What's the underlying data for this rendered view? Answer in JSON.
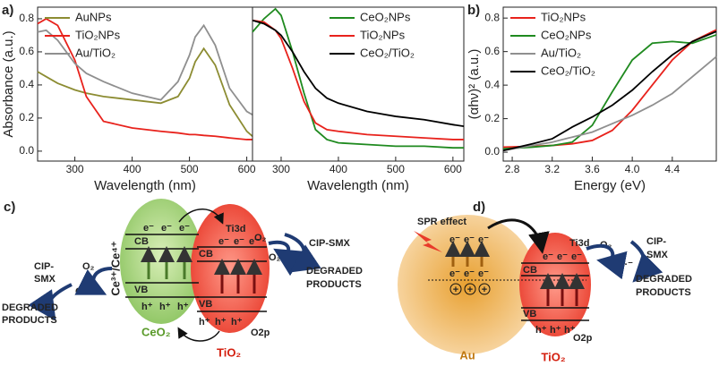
{
  "chart_data": [
    {
      "type": "line",
      "panel_label": "a)",
      "xlabel": "Wavelength (nm)",
      "ylabel": "Absorbance (a.u.)",
      "x": [
        235,
        250,
        270,
        300,
        320,
        350,
        400,
        450,
        480,
        500,
        510,
        525,
        545,
        570,
        600,
        610
      ],
      "series": [
        {
          "name": "AuNPs",
          "color": "#8c8c32",
          "values": [
            0.48,
            0.45,
            0.41,
            0.37,
            0.35,
            0.33,
            0.31,
            0.29,
            0.33,
            0.44,
            0.54,
            0.62,
            0.52,
            0.28,
            0.12,
            0.09
          ]
        },
        {
          "name": "TiO₂NPs",
          "color": "#e8221c",
          "values": [
            0.77,
            0.8,
            0.76,
            0.55,
            0.33,
            0.18,
            0.14,
            0.12,
            0.11,
            0.1,
            0.1,
            0.095,
            0.09,
            0.08,
            0.07,
            0.07
          ]
        },
        {
          "name": "Au/TiO₂",
          "color": "#8f8f8f",
          "values": [
            0.72,
            0.73,
            0.67,
            0.53,
            0.47,
            0.42,
            0.35,
            0.31,
            0.42,
            0.58,
            0.69,
            0.76,
            0.64,
            0.38,
            0.24,
            0.22
          ]
        }
      ],
      "xlim": [
        235,
        610
      ],
      "xticks": [
        300,
        400,
        500,
        600
      ],
      "ylim": [
        -0.06,
        0.87
      ],
      "yticks": [
        {
          "value": 0,
          "label": "0.0"
        },
        0.2,
        0.4,
        0.6,
        0.8
      ],
      "legend_position": "upper left"
    },
    {
      "type": "line",
      "xlabel": "Wavelength (nm)",
      "x": [
        250,
        270,
        290,
        300,
        320,
        340,
        360,
        380,
        400,
        450,
        500,
        550,
        600,
        619
      ],
      "series": [
        {
          "name": "CeO₂NPs",
          "color": "#1f8a1f",
          "values": [
            0.72,
            0.8,
            0.86,
            0.82,
            0.6,
            0.35,
            0.13,
            0.07,
            0.05,
            0.04,
            0.03,
            0.03,
            0.02,
            0.02
          ]
        },
        {
          "name": "TiO₂NPs",
          "color": "#e8221c",
          "values": [
            0.79,
            0.78,
            0.73,
            0.68,
            0.5,
            0.3,
            0.17,
            0.13,
            0.12,
            0.1,
            0.09,
            0.08,
            0.07,
            0.07
          ]
        },
        {
          "name": "CeO₂/TiO₂",
          "color": "#000000",
          "values": [
            0.79,
            0.77,
            0.73,
            0.7,
            0.6,
            0.48,
            0.38,
            0.32,
            0.29,
            0.24,
            0.21,
            0.19,
            0.16,
            0.15
          ]
        }
      ],
      "xlim": [
        250,
        619
      ],
      "xticks": [
        300,
        400,
        500,
        600
      ],
      "ylim": [
        -0.06,
        0.87
      ],
      "legend_position": "upper right"
    },
    {
      "type": "line",
      "panel_label": "b)",
      "xlabel": "Energy (eV)",
      "ylabel": "(αhν)² (a.u.)",
      "x": [
        2.71,
        3.0,
        3.2,
        3.4,
        3.6,
        3.8,
        4.0,
        4.2,
        4.4,
        4.6,
        4.84
      ],
      "series": [
        {
          "name": "TiO₂NPs",
          "color": "#e8221c",
          "values": [
            0.03,
            0.035,
            0.04,
            0.05,
            0.07,
            0.13,
            0.25,
            0.4,
            0.55,
            0.66,
            0.73
          ]
        },
        {
          "name": "CeO₂NPs",
          "color": "#1f8a1f",
          "values": [
            0.02,
            0.03,
            0.04,
            0.06,
            0.16,
            0.36,
            0.55,
            0.65,
            0.66,
            0.65,
            0.7
          ]
        },
        {
          "name": "Au/TiO₂",
          "color": "#8f8f8f",
          "values": [
            0.01,
            0.04,
            0.06,
            0.09,
            0.12,
            0.17,
            0.22,
            0.28,
            0.35,
            0.45,
            0.57
          ]
        },
        {
          "name": "CeO₂/TiO₂",
          "color": "#000000",
          "values": [
            0.01,
            0.05,
            0.08,
            0.15,
            0.21,
            0.28,
            0.37,
            0.48,
            0.58,
            0.66,
            0.72
          ]
        }
      ],
      "xlim": [
        2.71,
        4.84
      ],
      "xticks": [
        2.8,
        3.2,
        3.6,
        {
          "value": 4,
          "label": "4.0"
        },
        4.4
      ],
      "ylim": [
        -0.053,
        0.865
      ],
      "yticks": [
        {
          "value": 0,
          "label": "0.0"
        },
        0.2,
        0.4,
        0.6,
        0.8
      ],
      "legend_position": "upper left"
    }
  ],
  "diagram_c": {
    "label": "c)",
    "left_pollutant": [
      "CIP-",
      "SMX"
    ],
    "left_o2": "O₂",
    "left_radical": "O₂·⁻",
    "left_products": [
      "DEGRADED",
      "PRODUCTS"
    ],
    "couple": "Ce³⁺/Ce⁴⁺",
    "ceo2_cb": "CB",
    "ceo2_vb": "VB",
    "ceo2_electrons": [
      "e⁻",
      "e⁻",
      "e⁻"
    ],
    "ceo2_holes": [
      "h⁺",
      "h⁺",
      "h⁺"
    ],
    "ceo2_name": "CeO₂",
    "tio2_level_top": "Ti3d",
    "tio2_cb": "CB",
    "tio2_vb": "VB",
    "tio2_electrons": [
      "e⁻",
      "e⁻",
      "e⁻"
    ],
    "tio2_holes": [
      "h⁺",
      "h⁺",
      "h⁺"
    ],
    "tio2_level_bottom": "O2p",
    "tio2_name": "TiO₂",
    "right_o2": "O₂",
    "right_radical": "O₂·⁻",
    "right_pollutant": "CIP-SMX",
    "right_products": [
      "DEGRADED",
      "PRODUCTS"
    ]
  },
  "diagram_d": {
    "label": "d)",
    "spr": "SPR effect",
    "au_electrons_top": [
      "e⁻",
      "e⁻",
      "e⁻"
    ],
    "au_electrons": [
      "e⁻",
      "e⁻",
      "e⁻"
    ],
    "au_charges": [
      "+",
      "+",
      "+"
    ],
    "au_name": "Au",
    "tio2_level_top": "Ti3d",
    "tio2_cb": "CB",
    "tio2_vb": "VB",
    "tio2_electrons": [
      "e⁻",
      "e⁻",
      "e⁻"
    ],
    "tio2_holes": [
      "h⁺",
      "h⁺",
      "h⁺"
    ],
    "tio2_level_bottom": "O2p",
    "tio2_name": "TiO₂",
    "o2": "O₂",
    "radical": "O₂·⁻",
    "pollutant": [
      "CIP-",
      "SMX"
    ],
    "products": [
      "DEGRADED",
      "PRODUCTS"
    ]
  }
}
